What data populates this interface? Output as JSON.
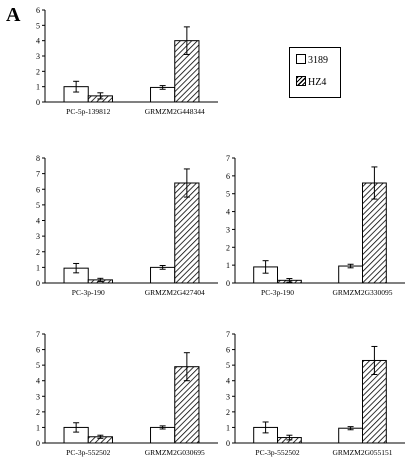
{
  "figure": {
    "panel_label": "A"
  },
  "legend": {
    "items": [
      {
        "label": "3189",
        "pattern": "open"
      },
      {
        "label": "HZ4",
        "pattern": "hatched"
      }
    ]
  },
  "colors": {
    "stroke": "#000000",
    "background": "#ffffff"
  },
  "chart_data": [
    {
      "type": "bar",
      "categories": [
        "PC-5p-139812",
        "GRMZM2G448344"
      ],
      "series": [
        {
          "name": "3189",
          "values": [
            1.0,
            0.95
          ],
          "errors": [
            0.35,
            0.12
          ]
        },
        {
          "name": "HZ4",
          "values": [
            0.4,
            4.0
          ],
          "errors": [
            0.2,
            0.9
          ]
        }
      ],
      "ylim": [
        0,
        6
      ],
      "yticks": [
        0,
        1,
        2,
        3,
        4,
        5,
        6
      ]
    },
    {
      "type": "bar",
      "categories": [
        "PC-3p-190",
        "GRMZM2G427404"
      ],
      "series": [
        {
          "name": "3189",
          "values": [
            0.95,
            1.0
          ],
          "errors": [
            0.3,
            0.12
          ]
        },
        {
          "name": "HZ4",
          "values": [
            0.2,
            6.4
          ],
          "errors": [
            0.1,
            0.9
          ]
        }
      ],
      "ylim": [
        0,
        8
      ],
      "yticks": [
        0,
        1,
        2,
        3,
        4,
        5,
        6,
        7,
        8
      ]
    },
    {
      "type": "bar",
      "categories": [
        "PC-3p-190",
        "GRMZM2G330095"
      ],
      "series": [
        {
          "name": "3189",
          "values": [
            0.9,
            0.95
          ],
          "errors": [
            0.35,
            0.1
          ]
        },
        {
          "name": "HZ4",
          "values": [
            0.15,
            5.6
          ],
          "errors": [
            0.1,
            0.9
          ]
        }
      ],
      "ylim": [
        0,
        7
      ],
      "yticks": [
        0,
        1,
        2,
        3,
        4,
        5,
        6,
        7
      ]
    },
    {
      "type": "bar",
      "categories": [
        "PC-3p-552502",
        "GRMZM2G030695"
      ],
      "series": [
        {
          "name": "3189",
          "values": [
            1.0,
            1.0
          ],
          "errors": [
            0.3,
            0.1
          ]
        },
        {
          "name": "HZ4",
          "values": [
            0.4,
            4.9
          ],
          "errors": [
            0.1,
            0.9
          ]
        }
      ],
      "ylim": [
        0,
        7
      ],
      "yticks": [
        0,
        1,
        2,
        3,
        4,
        5,
        6,
        7
      ]
    },
    {
      "type": "bar",
      "categories": [
        "PC-3p-552502",
        "GRMZM2G055151"
      ],
      "series": [
        {
          "name": "3189",
          "values": [
            1.0,
            0.95
          ],
          "errors": [
            0.35,
            0.1
          ]
        },
        {
          "name": "HZ4",
          "values": [
            0.35,
            5.3
          ],
          "errors": [
            0.15,
            0.9
          ]
        }
      ],
      "ylim": [
        0,
        7
      ],
      "yticks": [
        0,
        1,
        2,
        3,
        4,
        5,
        6,
        7
      ]
    }
  ]
}
